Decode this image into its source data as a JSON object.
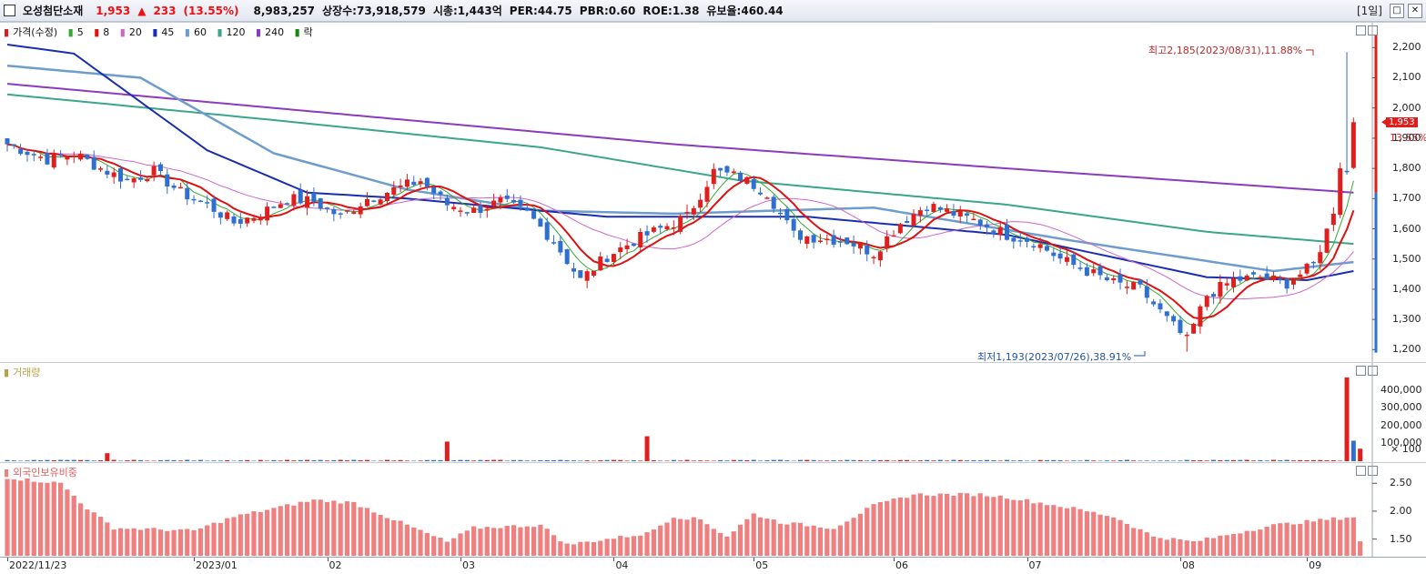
{
  "header": {
    "stock_name": "오성첨단소재",
    "price": "1,953",
    "change_arrow": "▲",
    "change": "233",
    "change_pct": "(13.55%)",
    "volume": "8,983,257",
    "listed_shares": "상장수:73,918,579",
    "market_cap": "시총:1,443억",
    "per": "PER:44.75",
    "pbr": "PBR:0.60",
    "roe": "ROE:1.38",
    "reserve_ratio": "유보율:460.44",
    "period": "[1일]"
  },
  "legend": {
    "price_label": "가격(수정)",
    "ma_labels": [
      "5",
      "8",
      "20",
      "45",
      "60",
      "120",
      "240",
      "락"
    ],
    "volume_label": "거래량",
    "foreign_label": "외국인보유비중"
  },
  "colors": {
    "up": "#e01e1e",
    "down": "#2f6fd0",
    "ma5": "#33aa33",
    "ma8": "#dd1111",
    "ma20": "#cc66cc",
    "ma45": "#1a2fb0",
    "ma60": "#6e9ccc",
    "ma120": "#3aa68a",
    "ma240": "#8a3bbf",
    "foreign": "#f08080"
  },
  "annotations": {
    "high": "최고2,185(2023/08/31),11.88%",
    "low": "최저1,193(2023/07/26),38.91%",
    "last_price": "1,953",
    "last_pct": "13.55%"
  },
  "price_axis": [
    "2,200",
    "2,100",
    "2,000",
    "1,900",
    "1,800",
    "1,700",
    "1,600",
    "1,500",
    "1,400",
    "1,300",
    "1,200"
  ],
  "volume_axis": [
    "400,000",
    "300,000",
    "200,000",
    "100,000",
    "× 100"
  ],
  "foreign_axis": [
    "2.50",
    "2.00",
    "1.50"
  ],
  "x_axis": [
    "2022/11/23",
    "2023/01",
    "02",
    "03",
    "04",
    "05",
    "06",
    "07",
    "08",
    "09"
  ],
  "chart_data": {
    "type": "candlestick",
    "price_range": [
      1180,
      2240
    ],
    "note_high": {
      "value": 2185,
      "date": "2023/08/31"
    },
    "note_low": {
      "value": 1193,
      "date": "2023/07/26"
    },
    "close_anchors": [
      [
        0,
        1880
      ],
      [
        6,
        1830
      ],
      [
        10,
        1850
      ],
      [
        14,
        1800
      ],
      [
        18,
        1760
      ],
      [
        22,
        1790
      ],
      [
        26,
        1720
      ],
      [
        30,
        1680
      ],
      [
        34,
        1620
      ],
      [
        38,
        1650
      ],
      [
        42,
        1700
      ],
      [
        46,
        1690
      ],
      [
        50,
        1640
      ],
      [
        54,
        1700
      ],
      [
        58,
        1730
      ],
      [
        62,
        1760
      ],
      [
        66,
        1680
      ],
      [
        70,
        1660
      ],
      [
        74,
        1690
      ],
      [
        78,
        1650
      ],
      [
        82,
        1560
      ],
      [
        86,
        1430
      ],
      [
        90,
        1510
      ],
      [
        94,
        1560
      ],
      [
        98,
        1600
      ],
      [
        102,
        1640
      ],
      [
        106,
        1790
      ],
      [
        110,
        1770
      ],
      [
        114,
        1720
      ],
      [
        118,
        1580
      ],
      [
        122,
        1570
      ],
      [
        126,
        1560
      ],
      [
        130,
        1520
      ],
      [
        134,
        1620
      ],
      [
        138,
        1680
      ],
      [
        142,
        1650
      ],
      [
        146,
        1620
      ],
      [
        150,
        1580
      ],
      [
        154,
        1560
      ],
      [
        158,
        1500
      ],
      [
        162,
        1460
      ],
      [
        166,
        1420
      ],
      [
        170,
        1400
      ],
      [
        174,
        1300
      ],
      [
        177,
        1230
      ],
      [
        180,
        1380
      ],
      [
        184,
        1430
      ],
      [
        188,
        1440
      ],
      [
        192,
        1420
      ],
      [
        196,
        1480
      ],
      [
        199,
        1650
      ],
      [
        200,
        1720
      ],
      [
        201,
        1780
      ],
      [
        202,
        1953
      ]
    ],
    "moving_averages": {
      "ma240_points": [
        [
          0,
          2080
        ],
        [
          100,
          1880
        ],
        [
          150,
          1800
        ],
        [
          202,
          1720
        ]
      ],
      "ma120_points": [
        [
          0,
          2045
        ],
        [
          40,
          1960
        ],
        [
          80,
          1870
        ],
        [
          110,
          1760
        ],
        [
          150,
          1680
        ],
        [
          180,
          1590
        ],
        [
          202,
          1550
        ]
      ],
      "ma60_points": [
        [
          0,
          2140
        ],
        [
          20,
          2100
        ],
        [
          40,
          1850
        ],
        [
          60,
          1730
        ],
        [
          80,
          1660
        ],
        [
          100,
          1650
        ],
        [
          130,
          1670
        ],
        [
          160,
          1560
        ],
        [
          190,
          1460
        ],
        [
          202,
          1490
        ]
      ],
      "ma45_points": [
        [
          0,
          2210
        ],
        [
          10,
          2180
        ],
        [
          20,
          2020
        ],
        [
          30,
          1860
        ],
        [
          45,
          1720
        ],
        [
          60,
          1700
        ],
        [
          90,
          1640
        ],
        [
          120,
          1640
        ],
        [
          150,
          1580
        ],
        [
          180,
          1440
        ],
        [
          195,
          1430
        ],
        [
          202,
          1460
        ]
      ]
    },
    "volume_values": {
      "spikes": [
        [
          15,
          45000
        ],
        [
          66,
          110000
        ],
        [
          96,
          140000
        ],
        [
          201,
          470000
        ],
        [
          202,
          115000
        ],
        [
          203,
          70000
        ]
      ],
      "base": 5000
    },
    "foreign_range": [
      1.2,
      2.7
    ]
  }
}
